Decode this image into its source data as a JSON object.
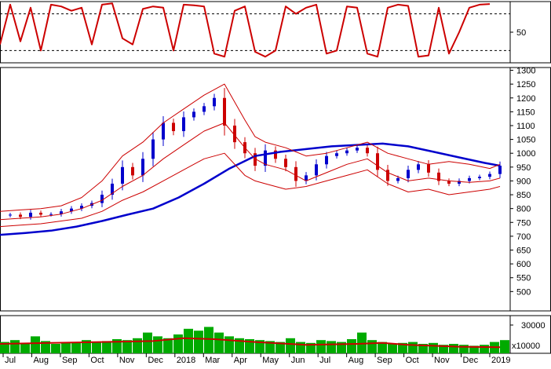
{
  "chart_data": [
    {
      "type": "line",
      "panel": "oscillator",
      "ylim": [
        0,
        100
      ],
      "y_ticks": [
        {
          "value": 50,
          "label": "50"
        }
      ],
      "reference_lines": [
        80,
        20
      ],
      "series": [
        {
          "color": "#cc0000",
          "x": [
            0,
            0.02,
            0.04,
            0.06,
            0.08,
            0.1,
            0.12,
            0.14,
            0.16,
            0.18,
            0.2,
            0.22,
            0.24,
            0.26,
            0.28,
            0.3,
            0.32,
            0.34,
            0.36,
            0.38,
            0.4,
            0.42,
            0.44,
            0.46,
            0.48,
            0.5,
            0.52,
            0.54,
            0.56,
            0.58,
            0.6,
            0.62,
            0.64,
            0.66,
            0.68,
            0.7,
            0.72,
            0.74,
            0.76,
            0.78,
            0.8,
            0.82,
            0.84,
            0.86,
            0.88,
            0.9,
            0.92,
            0.94,
            0.96
          ],
          "values": [
            30,
            95,
            35,
            90,
            20,
            95,
            92,
            85,
            90,
            30,
            95,
            97,
            40,
            30,
            88,
            92,
            90,
            20,
            95,
            94,
            92,
            15,
            10,
            85,
            92,
            18,
            10,
            20,
            92,
            80,
            90,
            95,
            15,
            20,
            92,
            90,
            15,
            10,
            90,
            95,
            93,
            10,
            12,
            90,
            15,
            50,
            90,
            95,
            96
          ]
        }
      ]
    },
    {
      "type": "candlestick",
      "panel": "price",
      "ylim": [
        430,
        1310
      ],
      "y_ticks": [
        1300,
        1250,
        1200,
        1150,
        1100,
        1050,
        1000,
        950,
        900,
        850,
        800,
        750,
        700,
        650,
        600,
        550,
        500
      ],
      "x_labels": [
        "Jul",
        "Aug",
        "Sep",
        "Oct",
        "Nov",
        "Dec",
        "2018",
        "Mar",
        "Apr",
        "May",
        "Jun",
        "Jul",
        "Aug",
        "Sep",
        "Oct",
        "Nov",
        "Dec",
        "2019"
      ],
      "close_series": {
        "color_up": "#0000cc",
        "color_down": "#cc0000",
        "x": [
          0,
          0.02,
          0.04,
          0.06,
          0.08,
          0.1,
          0.12,
          0.14,
          0.16,
          0.18,
          0.2,
          0.22,
          0.24,
          0.26,
          0.28,
          0.3,
          0.32,
          0.34,
          0.36,
          0.38,
          0.4,
          0.42,
          0.44,
          0.46,
          0.48,
          0.5,
          0.52,
          0.54,
          0.56,
          0.58,
          0.6,
          0.62,
          0.64,
          0.66,
          0.68,
          0.7,
          0.72,
          0.74,
          0.76,
          0.78,
          0.8,
          0.82,
          0.84,
          0.86,
          0.88,
          0.9,
          0.92,
          0.94,
          0.96,
          0.98
        ],
        "values": [
          775,
          778,
          770,
          785,
          778,
          780,
          790,
          800,
          810,
          820,
          850,
          890,
          950,
          920,
          980,
          1050,
          1110,
          1080,
          1130,
          1150,
          1170,
          1200,
          1100,
          1040,
          1000,
          955,
          1010,
          980,
          950,
          900,
          920,
          960,
          990,
          1000,
          1010,
          1020,
          1000,
          940,
          900,
          910,
          940,
          960,
          930,
          900,
          890,
          900,
          910,
          915,
          925,
          955
        ]
      },
      "series": [
        {
          "name": "",
          "color": "#0000cc",
          "x": [
            0,
            0.05,
            0.1,
            0.15,
            0.2,
            0.25,
            0.3,
            0.35,
            0.4,
            0.45,
            0.5,
            0.55,
            0.6,
            0.65,
            0.7,
            0.75,
            0.8,
            0.85,
            0.9,
            0.95,
            0.98
          ],
          "values": [
            705,
            712,
            720,
            735,
            755,
            778,
            800,
            840,
            890,
            945,
            990,
            1005,
            1015,
            1025,
            1030,
            1035,
            1025,
            1005,
            985,
            965,
            955
          ]
        },
        {
          "name": "",
          "color": "#cc0000",
          "x": [
            0,
            0.04,
            0.08,
            0.12,
            0.16,
            0.2,
            0.24,
            0.28,
            0.32,
            0.36,
            0.4,
            0.44,
            0.48,
            0.5,
            0.52,
            0.56,
            0.6,
            0.64,
            0.68,
            0.72,
            0.76,
            0.8,
            0.84,
            0.88,
            0.92,
            0.96,
            0.98
          ],
          "values": [
            790,
            795,
            800,
            810,
            840,
            900,
            990,
            1040,
            1110,
            1160,
            1210,
            1250,
            1120,
            1060,
            1040,
            1020,
            990,
            1000,
            1020,
            1040,
            1000,
            980,
            960,
            970,
            960,
            945,
            960
          ]
        },
        {
          "name": "",
          "color": "#cc0000",
          "x": [
            0,
            0.04,
            0.08,
            0.12,
            0.16,
            0.2,
            0.24,
            0.28,
            0.32,
            0.36,
            0.4,
            0.44,
            0.48,
            0.5,
            0.52,
            0.56,
            0.6,
            0.64,
            0.68,
            0.72,
            0.76,
            0.8,
            0.84,
            0.88,
            0.92,
            0.96,
            0.98
          ],
          "values": [
            760,
            765,
            770,
            780,
            800,
            830,
            880,
            920,
            980,
            1030,
            1080,
            1110,
            1020,
            980,
            960,
            940,
            900,
            930,
            960,
            980,
            930,
            900,
            910,
            900,
            895,
            900,
            910
          ]
        },
        {
          "name": "",
          "color": "#cc0000",
          "x": [
            0,
            0.04,
            0.08,
            0.12,
            0.16,
            0.2,
            0.24,
            0.28,
            0.32,
            0.36,
            0.4,
            0.44,
            0.48,
            0.5,
            0.52,
            0.56,
            0.6,
            0.64,
            0.68,
            0.72,
            0.76,
            0.8,
            0.84,
            0.88,
            0.92,
            0.96,
            0.98
          ],
          "values": [
            735,
            740,
            745,
            755,
            765,
            790,
            830,
            860,
            900,
            940,
            980,
            1000,
            920,
            900,
            890,
            870,
            880,
            900,
            920,
            940,
            890,
            860,
            870,
            850,
            860,
            870,
            880
          ]
        }
      ]
    },
    {
      "type": "bar",
      "panel": "volume",
      "ylim": [
        0,
        40000
      ],
      "y_ticks": [
        {
          "value": 30000,
          "label": "30000"
        }
      ],
      "unit_label": "x10000",
      "bar_color": "#00aa00",
      "x": [
        0,
        0.02,
        0.04,
        0.06,
        0.08,
        0.1,
        0.12,
        0.14,
        0.16,
        0.18,
        0.2,
        0.22,
        0.24,
        0.26,
        0.28,
        0.3,
        0.32,
        0.34,
        0.36,
        0.38,
        0.4,
        0.42,
        0.44,
        0.46,
        0.48,
        0.5,
        0.52,
        0.54,
        0.56,
        0.58,
        0.6,
        0.62,
        0.64,
        0.66,
        0.68,
        0.7,
        0.72,
        0.74,
        0.76,
        0.78,
        0.8,
        0.82,
        0.84,
        0.86,
        0.88,
        0.9,
        0.92,
        0.94,
        0.96,
        0.98
      ],
      "values": [
        12000,
        14000,
        11000,
        18000,
        13000,
        10000,
        12000,
        11000,
        14000,
        12000,
        13000,
        15000,
        14000,
        16000,
        22000,
        18000,
        16000,
        20000,
        26000,
        24000,
        28000,
        22000,
        18000,
        16000,
        15000,
        14000,
        13000,
        12000,
        16000,
        12000,
        11000,
        14000,
        13000,
        12000,
        15000,
        22000,
        14000,
        12000,
        10000,
        11000,
        12000,
        10000,
        11000,
        9000,
        10000,
        9000,
        8000,
        9000,
        12000,
        14000
      ],
      "ma_series": {
        "color": "#cc0000",
        "x": [
          0,
          0.1,
          0.2,
          0.3,
          0.36,
          0.42,
          0.5,
          0.6,
          0.7,
          0.75,
          0.8,
          0.9,
          0.98
        ],
        "values": [
          10000,
          11000,
          12000,
          13000,
          16000,
          15000,
          12000,
          9000,
          10000,
          11000,
          9000,
          7000,
          6500
        ]
      }
    }
  ]
}
